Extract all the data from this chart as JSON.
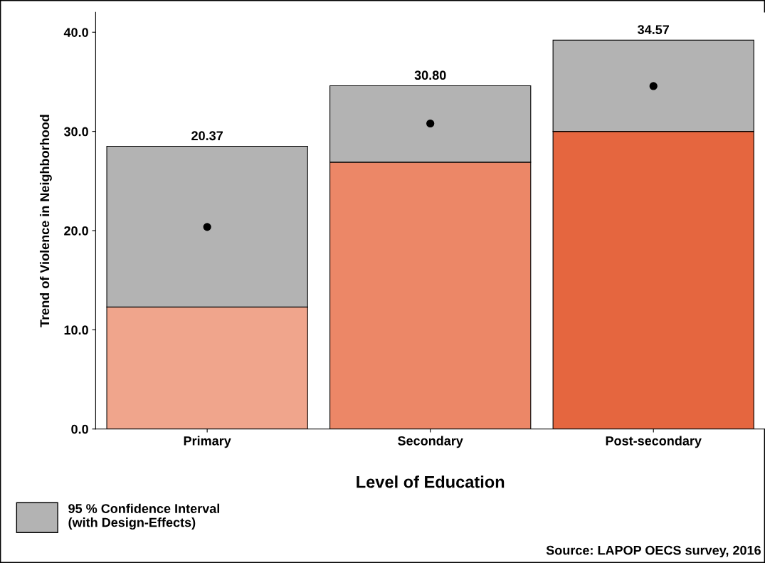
{
  "chart_data": {
    "type": "bar",
    "stacked": true,
    "xlabel": "Level of Education",
    "ylabel": "Trend of Violence in Neighborhood",
    "categories": [
      "Primary",
      "Secondary",
      "Post-secondary"
    ],
    "series": [
      {
        "colors": [
          "#f0a58c",
          "#ec8767",
          "#e5663f"
        ],
        "values": [
          12.3,
          26.9,
          30.0
        ]
      },
      {
        "name": "95 % Confidence Interval\n(with Design-Effects)",
        "color": "#b3b3b3",
        "values": [
          16.2,
          7.7,
          9.2
        ]
      },
      {
        "type": "scatter",
        "color": "#000000",
        "marker": "circle",
        "values": [
          20.37,
          30.8,
          34.57
        ]
      }
    ],
    "ylim": [
      0,
      42
    ],
    "yticks": [
      {
        "value": 0,
        "label": "0.0"
      },
      {
        "value": 10,
        "label": "10.0"
      },
      {
        "value": 20,
        "label": "20.0"
      },
      {
        "value": 30,
        "label": "30.0"
      },
      {
        "value": 40,
        "label": "40.0"
      }
    ],
    "grid": false,
    "legend": "bottom left",
    "annotations": [
      {
        "text": "20.37",
        "x": "Primary",
        "y": 28.5
      },
      {
        "text": "30.80",
        "x": "Secondary",
        "y": 34.6
      },
      {
        "text": "34.57",
        "x": "Post-secondary",
        "y": 39.2
      },
      "Source: LAPOP OECS survey, 2016"
    ]
  }
}
